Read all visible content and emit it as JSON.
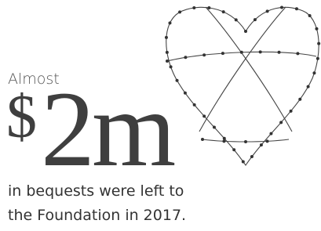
{
  "lead": "Almost",
  "currency": "$",
  "amount": "2m",
  "caption": [
    "in bequests were left to",
    "the Foundation in 2017."
  ]
}
